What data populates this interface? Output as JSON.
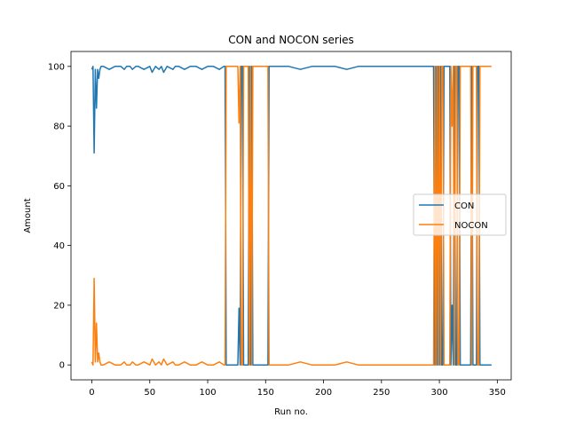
{
  "chart_data": {
    "type": "line",
    "title": "CON and NOCON series",
    "xlabel": "Run no.",
    "ylabel": "Amount",
    "xlim": [
      -18,
      362
    ],
    "ylim": [
      -5,
      105
    ],
    "xticks": [
      0,
      50,
      100,
      150,
      200,
      250,
      300,
      350
    ],
    "yticks": [
      0,
      20,
      40,
      60,
      80,
      100
    ],
    "grid": false,
    "legend_position": "center-right",
    "series": [
      {
        "name": "CON",
        "color": "#1f77b4",
        "x": [
          0,
          1,
          2,
          3,
          4,
          5,
          6,
          7,
          8,
          9,
          10,
          15,
          20,
          25,
          28,
          30,
          33,
          35,
          38,
          40,
          45,
          50,
          52,
          55,
          58,
          60,
          62,
          65,
          70,
          72,
          75,
          80,
          85,
          90,
          95,
          100,
          105,
          110,
          114,
          115,
          116,
          126,
          127,
          128,
          129,
          130,
          131,
          132,
          135,
          136,
          137,
          138,
          139,
          140,
          150,
          152,
          153,
          154,
          155,
          160,
          170,
          180,
          190,
          200,
          210,
          220,
          230,
          240,
          250,
          260,
          270,
          280,
          290,
          295,
          296,
          297,
          298,
          299,
          300,
          301,
          302,
          303,
          304,
          305,
          306,
          307,
          308,
          309,
          310,
          311,
          312,
          313,
          314,
          315,
          316,
          317,
          318,
          319,
          320,
          325,
          326,
          327,
          328,
          329,
          330,
          331,
          332,
          333,
          334,
          335,
          336,
          337,
          340,
          345
        ],
        "y": [
          99,
          100,
          71,
          99,
          86,
          99,
          96,
          99,
          100,
          100,
          100,
          99,
          100,
          100,
          99,
          100,
          100,
          99,
          100,
          100,
          99,
          100,
          98,
          100,
          99,
          100,
          98,
          100,
          99,
          100,
          100,
          99,
          100,
          100,
          99,
          100,
          100,
          99,
          100,
          100,
          0,
          0,
          19,
          0,
          100,
          100,
          0,
          0,
          0,
          100,
          0,
          100,
          0,
          0,
          0,
          0,
          100,
          100,
          100,
          100,
          100,
          99,
          100,
          100,
          100,
          99,
          100,
          100,
          100,
          100,
          100,
          100,
          100,
          100,
          0,
          100,
          0,
          100,
          0,
          100,
          0,
          0,
          100,
          100,
          100,
          100,
          100,
          100,
          0,
          20,
          0,
          100,
          0,
          0,
          100,
          100,
          0,
          0,
          0,
          0,
          0,
          0,
          100,
          0,
          0,
          0,
          0,
          100,
          100,
          0,
          0,
          0,
          0,
          0
        ]
      },
      {
        "name": "NOCON",
        "color": "#ff7f0e",
        "x": [
          0,
          1,
          2,
          3,
          4,
          5,
          6,
          7,
          8,
          9,
          10,
          15,
          20,
          25,
          28,
          30,
          33,
          35,
          38,
          40,
          45,
          50,
          52,
          55,
          58,
          60,
          62,
          65,
          70,
          72,
          75,
          80,
          85,
          90,
          95,
          100,
          105,
          110,
          114,
          115,
          116,
          126,
          127,
          128,
          129,
          130,
          131,
          132,
          135,
          136,
          137,
          138,
          139,
          140,
          150,
          152,
          153,
          154,
          155,
          160,
          170,
          180,
          190,
          200,
          210,
          220,
          230,
          240,
          250,
          260,
          270,
          280,
          290,
          295,
          296,
          297,
          298,
          299,
          300,
          301,
          302,
          303,
          304,
          305,
          306,
          307,
          308,
          309,
          310,
          311,
          312,
          313,
          314,
          315,
          316,
          317,
          318,
          319,
          320,
          325,
          326,
          327,
          328,
          329,
          330,
          331,
          332,
          333,
          334,
          335,
          336,
          337,
          340,
          345
        ],
        "y": [
          1,
          0,
          29,
          1,
          14,
          1,
          4,
          1,
          0,
          0,
          0,
          1,
          0,
          0,
          1,
          0,
          0,
          1,
          0,
          0,
          1,
          0,
          2,
          0,
          1,
          0,
          2,
          0,
          1,
          0,
          0,
          1,
          0,
          0,
          1,
          0,
          0,
          1,
          0,
          0,
          100,
          100,
          81,
          100,
          0,
          0,
          100,
          100,
          100,
          0,
          100,
          0,
          100,
          100,
          100,
          100,
          0,
          0,
          0,
          0,
          0,
          1,
          0,
          0,
          0,
          1,
          0,
          0,
          0,
          0,
          0,
          0,
          0,
          0,
          100,
          0,
          100,
          0,
          100,
          0,
          100,
          100,
          0,
          0,
          0,
          0,
          0,
          0,
          100,
          80,
          100,
          0,
          100,
          100,
          0,
          0,
          100,
          100,
          100,
          100,
          100,
          100,
          0,
          100,
          100,
          100,
          100,
          0,
          0,
          100,
          100,
          100,
          100,
          100
        ]
      }
    ]
  }
}
